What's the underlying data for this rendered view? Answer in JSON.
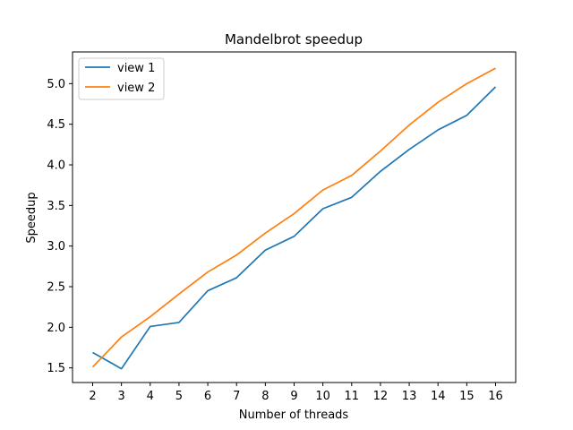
{
  "chart_data": {
    "type": "line",
    "title": "Mandelbrot speedup",
    "xlabel": "Number of threads",
    "ylabel": "Speedup",
    "x": [
      2,
      3,
      4,
      5,
      6,
      7,
      8,
      9,
      10,
      11,
      12,
      13,
      14,
      15,
      16
    ],
    "xticks": [
      "2",
      "3",
      "4",
      "5",
      "6",
      "7",
      "8",
      "9",
      "10",
      "11",
      "12",
      "13",
      "14",
      "15",
      "16"
    ],
    "yticks": [
      "1.5",
      "2.0",
      "2.5",
      "3.0",
      "3.5",
      "4.0",
      "4.5",
      "5.0"
    ],
    "xlim": [
      1.3,
      16.7
    ],
    "ylim": [
      1.32,
      5.39
    ],
    "grid": false,
    "legend_position": "top-left",
    "series": [
      {
        "name": "view 1",
        "color": "#1f77b4",
        "values": [
          1.69,
          1.49,
          2.01,
          2.06,
          2.45,
          2.61,
          2.95,
          3.12,
          3.46,
          3.6,
          3.92,
          4.19,
          4.43,
          4.61,
          4.96
        ]
      },
      {
        "name": "view 2",
        "color": "#ff7f0e",
        "values": [
          1.51,
          1.88,
          2.13,
          2.41,
          2.68,
          2.89,
          3.16,
          3.4,
          3.69,
          3.87,
          4.17,
          4.49,
          4.77,
          5.0,
          5.19
        ]
      }
    ]
  }
}
